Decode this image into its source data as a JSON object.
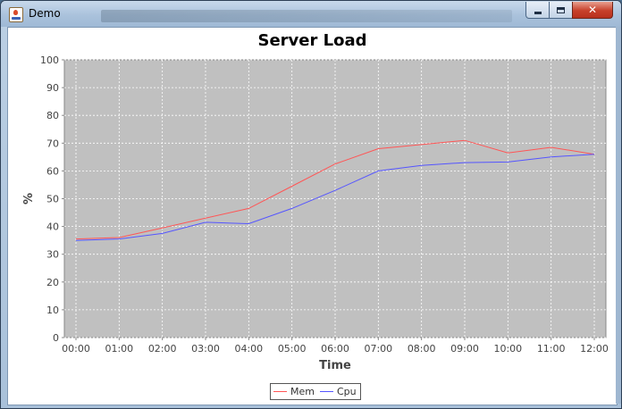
{
  "window": {
    "title": "Demo",
    "controls": {
      "minimize_icon": "minimize-icon",
      "maximize_icon": "maximize-icon",
      "close_icon": "close-icon"
    }
  },
  "colors": {
    "plot_background": "#c0c0c0",
    "mem": "#ff5555",
    "cpu": "#5555ff",
    "gridline": "#ffffff"
  },
  "chart_data": {
    "type": "line",
    "title": "Server Load",
    "xlabel": "Time",
    "ylabel": "%",
    "ylim": [
      0,
      100
    ],
    "yticks": [
      0,
      10,
      20,
      30,
      40,
      50,
      60,
      70,
      80,
      90,
      100
    ],
    "categories": [
      "00:00",
      "01:00",
      "02:00",
      "03:00",
      "04:00",
      "05:00",
      "06:00",
      "07:00",
      "08:00",
      "09:00",
      "10:00",
      "11:00",
      "12:00"
    ],
    "series": [
      {
        "name": "Mem",
        "color": "#ff5555",
        "values": [
          35.5,
          36,
          39.5,
          43,
          46.5,
          54.5,
          62.5,
          68,
          69.5,
          71,
          66.5,
          68.5,
          66
        ]
      },
      {
        "name": "Cpu",
        "color": "#5555ff",
        "values": [
          35,
          35.5,
          37.5,
          41.5,
          41,
          46.5,
          53,
          60,
          62,
          63,
          63.2,
          65,
          66
        ]
      }
    ],
    "grid": true,
    "legend": "bottom-center"
  }
}
